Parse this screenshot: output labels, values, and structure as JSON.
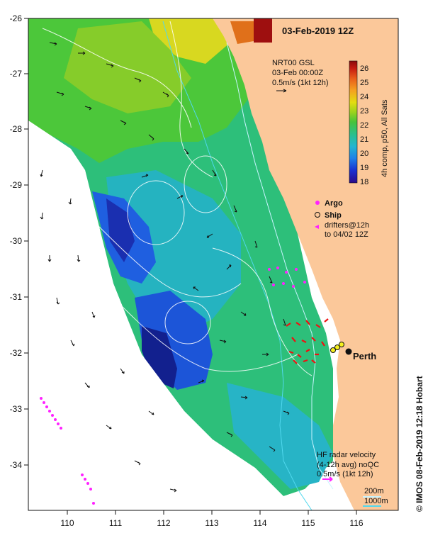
{
  "map": {
    "title": "03-Feb-2019 12Z",
    "x_ticks": [
      "110",
      "111",
      "112",
      "113",
      "114",
      "115",
      "116"
    ],
    "y_ticks": [
      "-26",
      "-27",
      "-28",
      "-29",
      "-30",
      "-31",
      "-32",
      "-33",
      "-34"
    ],
    "x_range": [
      109.2,
      116.8
    ],
    "y_range": [
      -34.8,
      -26.0
    ],
    "credit": "© IMOS 08-Feb-2019 12:18 Hobart"
  },
  "gsl_note": {
    "line1": "NRT00 GSL",
    "line2": "03-Feb 00:00Z",
    "line3": "0.5m/s (1kt 12h)"
  },
  "colorbar": {
    "label": "4h comp, p50, All Sats",
    "ticks": [
      "26",
      "25",
      "24",
      "23",
      "22",
      "21",
      "20",
      "19",
      "18"
    ],
    "range": [
      18,
      26.5
    ],
    "colors": [
      "#2a0a8a",
      "#1a2fd0",
      "#1f7fe8",
      "#22b5d0",
      "#2bbf8a",
      "#47c33a",
      "#9bd21c",
      "#e3dd10",
      "#f5a020",
      "#e85a1a",
      "#c51a10",
      "#8b0a0a"
    ]
  },
  "legend": {
    "argo": "Argo",
    "ship": "Ship",
    "drifters_line1": "drifters@12h",
    "drifters_line2": "to 04/02 12Z"
  },
  "city": "Perth",
  "hf_note": {
    "line1": "HF radar velocity",
    "line2": "(4-12h avg) noQC",
    "line3": "0.5m/s (1kt 12h)"
  },
  "depth_legend": {
    "d200": "200m",
    "d1000": "1000m"
  },
  "colors": {
    "land": "#fbc89a",
    "argo": "#ff22ff",
    "drift": "#ee1111",
    "iso200": "#c8f4ff",
    "iso1000": "#50d8ee"
  }
}
